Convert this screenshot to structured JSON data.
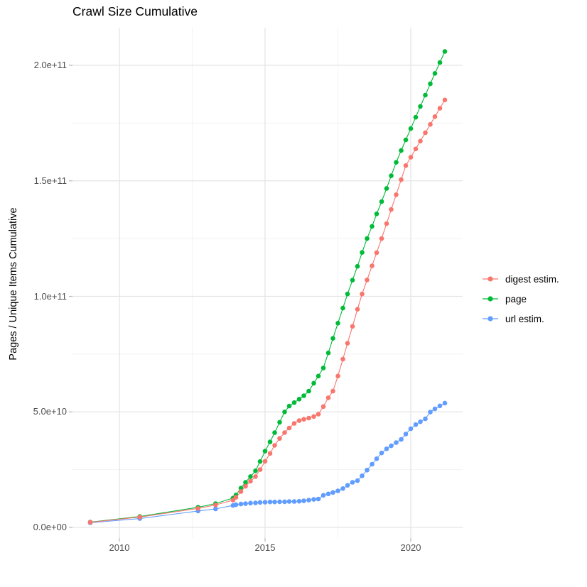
{
  "chart_data": {
    "type": "scatter-line",
    "title": "Crawl Size Cumulative",
    "xlabel": "",
    "ylabel": "Pages / Unique Items Cumulative",
    "values_unit": "items, billions (1e9)",
    "xlim": [
      2008.4,
      2021.8
    ],
    "ylim_billions": [
      -4.6,
      216
    ],
    "grid": true,
    "legend_position": "right",
    "x_ticks": {
      "values": [
        2010,
        2015,
        2020
      ],
      "labels": [
        "2010",
        "2015",
        "2020"
      ]
    },
    "x_minor": [
      2012.5,
      2017.5
    ],
    "y_ticks": {
      "values_billions": [
        0,
        50,
        100,
        150,
        200
      ],
      "labels": [
        "0.0e+00",
        "5.0e+10",
        "1.0e+11",
        "1.5e+11",
        "2.0e+11"
      ]
    },
    "y_minor_billions": [
      25,
      75,
      125,
      175
    ],
    "draw_order": [
      1,
      2,
      0
    ],
    "series": [
      {
        "name": "digest estim.",
        "color": "#F8766D",
        "points_year_billions": [
          [
            2009.0,
            2.2
          ],
          [
            2010.7,
            4.5
          ],
          [
            2012.7,
            8.2
          ],
          [
            2013.3,
            9.7
          ],
          [
            2013.9,
            11.8
          ],
          [
            2014.0,
            13
          ],
          [
            2014.17,
            15.5
          ],
          [
            2014.33,
            17.8
          ],
          [
            2014.5,
            20
          ],
          [
            2014.67,
            22
          ],
          [
            2014.83,
            25
          ],
          [
            2015.0,
            28.6
          ],
          [
            2015.17,
            32
          ],
          [
            2015.33,
            35.5
          ],
          [
            2015.5,
            38.5
          ],
          [
            2015.67,
            41
          ],
          [
            2015.83,
            43
          ],
          [
            2016.0,
            45
          ],
          [
            2016.17,
            46.2
          ],
          [
            2016.33,
            46.8
          ],
          [
            2016.5,
            47.3
          ],
          [
            2016.67,
            48
          ],
          [
            2016.83,
            49
          ],
          [
            2017.0,
            52.3
          ],
          [
            2017.17,
            56.1
          ],
          [
            2017.33,
            59
          ],
          [
            2017.5,
            65.5
          ],
          [
            2017.67,
            72.8
          ],
          [
            2017.83,
            79.7
          ],
          [
            2018.0,
            87
          ],
          [
            2018.17,
            94.4
          ],
          [
            2018.33,
            101
          ],
          [
            2018.5,
            107.1
          ],
          [
            2018.67,
            113.2
          ],
          [
            2018.83,
            118.9
          ],
          [
            2019.0,
            125
          ],
          [
            2019.17,
            131.5
          ],
          [
            2019.33,
            137.6
          ],
          [
            2019.5,
            144
          ],
          [
            2019.67,
            150.5
          ],
          [
            2019.83,
            156.6
          ],
          [
            2020.0,
            160.2
          ],
          [
            2020.17,
            163.8
          ],
          [
            2020.33,
            167.2
          ],
          [
            2020.5,
            170.8
          ],
          [
            2020.67,
            174.4
          ],
          [
            2020.83,
            177.8
          ],
          [
            2021.0,
            181.4
          ],
          [
            2021.17,
            185
          ]
        ]
      },
      {
        "name": "page",
        "color": "#00BA38",
        "points_year_billions": [
          [
            2009.0,
            2.3
          ],
          [
            2010.7,
            4.7
          ],
          [
            2012.7,
            8.7
          ],
          [
            2013.3,
            10.3
          ],
          [
            2013.9,
            12.7
          ],
          [
            2014.0,
            14
          ],
          [
            2014.17,
            17
          ],
          [
            2014.33,
            19.5
          ],
          [
            2014.5,
            22
          ],
          [
            2014.67,
            24.5
          ],
          [
            2014.83,
            28.5
          ],
          [
            2015.0,
            33
          ],
          [
            2015.17,
            37
          ],
          [
            2015.33,
            41
          ],
          [
            2015.5,
            45.5
          ],
          [
            2015.67,
            50
          ],
          [
            2015.83,
            52.5
          ],
          [
            2016.0,
            54
          ],
          [
            2016.17,
            55.5
          ],
          [
            2016.33,
            57
          ],
          [
            2016.5,
            59
          ],
          [
            2016.67,
            62.4
          ],
          [
            2016.83,
            65.5
          ],
          [
            2017.0,
            69
          ],
          [
            2017.17,
            75.5
          ],
          [
            2017.33,
            81.8
          ],
          [
            2017.5,
            88.4
          ],
          [
            2017.67,
            94.9
          ],
          [
            2017.83,
            101
          ],
          [
            2018.0,
            107
          ],
          [
            2018.17,
            113
          ],
          [
            2018.33,
            119
          ],
          [
            2018.5,
            125
          ],
          [
            2018.67,
            130.3
          ],
          [
            2018.83,
            135.7
          ],
          [
            2019.0,
            141
          ],
          [
            2019.17,
            146.7
          ],
          [
            2019.33,
            152.2
          ],
          [
            2019.5,
            158
          ],
          [
            2019.67,
            163.1
          ],
          [
            2019.83,
            167.7
          ],
          [
            2020.0,
            172.6
          ],
          [
            2020.17,
            177.5
          ],
          [
            2020.33,
            182.2
          ],
          [
            2020.5,
            187.1
          ],
          [
            2020.67,
            192
          ],
          [
            2020.83,
            196.5
          ],
          [
            2021.0,
            201.2
          ],
          [
            2021.17,
            206
          ]
        ]
      },
      {
        "name": "url estim.",
        "color": "#619CFF",
        "points_year_billions": [
          [
            2009.0,
            2.0
          ],
          [
            2010.7,
            3.8
          ],
          [
            2012.7,
            7.1
          ],
          [
            2013.3,
            8.0
          ],
          [
            2013.9,
            9.5
          ],
          [
            2014.0,
            9.8
          ],
          [
            2014.17,
            10.1
          ],
          [
            2014.33,
            10.3
          ],
          [
            2014.5,
            10.5
          ],
          [
            2014.67,
            10.6
          ],
          [
            2014.83,
            10.8
          ],
          [
            2015.0,
            10.9
          ],
          [
            2015.17,
            11.0
          ],
          [
            2015.33,
            11.0
          ],
          [
            2015.5,
            11.1
          ],
          [
            2015.67,
            11.1
          ],
          [
            2015.83,
            11.2
          ],
          [
            2016.0,
            11.2
          ],
          [
            2016.17,
            11.3
          ],
          [
            2016.33,
            11.5
          ],
          [
            2016.5,
            11.8
          ],
          [
            2016.67,
            12.1
          ],
          [
            2016.83,
            12.3
          ],
          [
            2017.0,
            13.9
          ],
          [
            2017.17,
            14.5
          ],
          [
            2017.33,
            15.1
          ],
          [
            2017.5,
            15.8
          ],
          [
            2017.67,
            16.8
          ],
          [
            2017.83,
            18.2
          ],
          [
            2018.0,
            19.5
          ],
          [
            2018.17,
            20.2
          ],
          [
            2018.33,
            22.3
          ],
          [
            2018.5,
            24.8
          ],
          [
            2018.67,
            27.3
          ],
          [
            2018.83,
            29.7
          ],
          [
            2019.0,
            32.2
          ],
          [
            2019.17,
            34.0
          ],
          [
            2019.33,
            35.3
          ],
          [
            2019.5,
            36.7
          ],
          [
            2019.67,
            38.1
          ],
          [
            2019.83,
            40.4
          ],
          [
            2020.0,
            42.7
          ],
          [
            2020.17,
            44.5
          ],
          [
            2020.33,
            45.7
          ],
          [
            2020.5,
            47.0
          ],
          [
            2020.67,
            49.9
          ],
          [
            2020.83,
            51.3
          ],
          [
            2021.0,
            52.6
          ],
          [
            2021.17,
            53.8
          ]
        ]
      }
    ],
    "style": {
      "grid_major_color": "#E5E5E5",
      "grid_minor_color": "#F2F2F2",
      "tick_mark_color": "#b9b9b9",
      "point_radius_px": 3.3
    }
  }
}
